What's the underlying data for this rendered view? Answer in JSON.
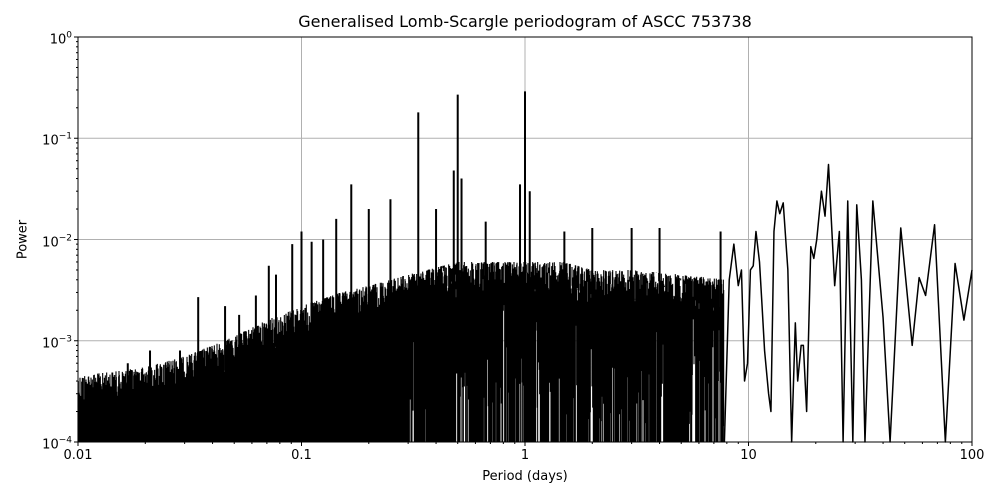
{
  "chart_data": {
    "type": "line",
    "title": "Generalised Lomb-Scargle periodogram of ASCC 753738",
    "xlabel": "Period (days)",
    "ylabel": "Power",
    "xscale": "log",
    "yscale": "log",
    "xlim": [
      0.01,
      100
    ],
    "ylim": [
      0.0001,
      1
    ],
    "grid": true,
    "legend": null,
    "x_ticks": [
      {
        "value": 0.01,
        "label": "0.01"
      },
      {
        "value": 0.1,
        "label": "0.1"
      },
      {
        "value": 1,
        "label": "1"
      },
      {
        "value": 10,
        "label": "10"
      },
      {
        "value": 100,
        "label": "100"
      }
    ],
    "y_ticks": [
      {
        "value": 1,
        "base": "10",
        "exp": "0"
      },
      {
        "value": 0.1,
        "base": "10",
        "exp": "−1"
      },
      {
        "value": 0.01,
        "base": "10",
        "exp": "−2"
      },
      {
        "value": 0.001,
        "base": "10",
        "exp": "−3"
      },
      {
        "value": 0.0001,
        "base": "10",
        "exp": "−4"
      }
    ],
    "line_color": "#000000",
    "grid_color": "#b0b0b0",
    "envelope": {
      "description": "Upper envelope of the dense noise floor (period, power)",
      "points": [
        [
          0.01,
          0.00045
        ],
        [
          0.015,
          0.0005
        ],
        [
          0.02,
          0.00055
        ],
        [
          0.03,
          0.0007
        ],
        [
          0.04,
          0.0009
        ],
        [
          0.05,
          0.0011
        ],
        [
          0.07,
          0.0016
        ],
        [
          0.1,
          0.0022
        ],
        [
          0.15,
          0.003
        ],
        [
          0.2,
          0.0035
        ],
        [
          0.3,
          0.0045
        ],
        [
          0.5,
          0.006
        ],
        [
          0.8,
          0.006
        ],
        [
          1.0,
          0.006
        ],
        [
          1.5,
          0.006
        ],
        [
          2.0,
          0.005
        ],
        [
          3.0,
          0.005
        ],
        [
          5.0,
          0.0045
        ],
        [
          8.0,
          0.004
        ]
      ]
    },
    "peaks": [
      {
        "period": 0.0167,
        "power": 0.0006
      },
      {
        "period": 0.021,
        "power": 0.0008
      },
      {
        "period": 0.0286,
        "power": 0.0008
      },
      {
        "period": 0.0345,
        "power": 0.0027
      },
      {
        "period": 0.0455,
        "power": 0.0022
      },
      {
        "period": 0.0526,
        "power": 0.0018
      },
      {
        "period": 0.0625,
        "power": 0.0028
      },
      {
        "period": 0.0714,
        "power": 0.0055
      },
      {
        "period": 0.0769,
        "power": 0.0045
      },
      {
        "period": 0.0909,
        "power": 0.009
      },
      {
        "period": 0.1,
        "power": 0.012
      },
      {
        "period": 0.111,
        "power": 0.0095
      },
      {
        "period": 0.125,
        "power": 0.01
      },
      {
        "period": 0.143,
        "power": 0.016
      },
      {
        "period": 0.167,
        "power": 0.035
      },
      {
        "period": 0.2,
        "power": 0.02
      },
      {
        "period": 0.25,
        "power": 0.025
      },
      {
        "period": 0.333,
        "power": 0.18
      },
      {
        "period": 0.4,
        "power": 0.02
      },
      {
        "period": 0.5,
        "power": 0.27
      },
      {
        "period": 0.48,
        "power": 0.048
      },
      {
        "period": 0.52,
        "power": 0.04
      },
      {
        "period": 0.667,
        "power": 0.015
      },
      {
        "period": 0.95,
        "power": 0.035
      },
      {
        "period": 1.0,
        "power": 0.29
      },
      {
        "period": 1.05,
        "power": 0.03
      },
      {
        "period": 1.5,
        "power": 0.012
      },
      {
        "period": 2.0,
        "power": 0.013
      },
      {
        "period": 3.0,
        "power": 0.013
      },
      {
        "period": 4.0,
        "power": 0.013
      },
      {
        "period": 7.5,
        "power": 0.012
      }
    ],
    "long_period_curve": [
      [
        7.8,
        0.0001
      ],
      [
        8.2,
        0.004
      ],
      [
        8.6,
        0.009
      ],
      [
        9.0,
        0.0035
      ],
      [
        9.3,
        0.005
      ],
      [
        9.6,
        0.0004
      ],
      [
        9.9,
        0.0006
      ],
      [
        10.2,
        0.005
      ],
      [
        10.5,
        0.0055
      ],
      [
        10.8,
        0.012
      ],
      [
        11.2,
        0.006
      ],
      [
        11.5,
        0.0022
      ],
      [
        11.8,
        0.0008
      ],
      [
        12.3,
        0.0003
      ],
      [
        12.6,
        0.0002
      ],
      [
        13.0,
        0.012
      ],
      [
        13.4,
        0.024
      ],
      [
        13.8,
        0.018
      ],
      [
        14.3,
        0.023
      ],
      [
        15.0,
        0.005
      ],
      [
        15.6,
        0.0001
      ],
      [
        16.2,
        0.0015
      ],
      [
        16.6,
        0.0004
      ],
      [
        17.2,
        0.0009
      ],
      [
        17.6,
        0.0009
      ],
      [
        18.2,
        0.0002
      ],
      [
        19.0,
        0.0085
      ],
      [
        19.6,
        0.0065
      ],
      [
        20.2,
        0.01
      ],
      [
        21.2,
        0.03
      ],
      [
        22.0,
        0.017
      ],
      [
        22.8,
        0.055
      ],
      [
        24.3,
        0.0035
      ],
      [
        25.5,
        0.012
      ],
      [
        26.5,
        0.0001
      ],
      [
        27.8,
        0.024
      ],
      [
        29.3,
        0.0001
      ],
      [
        30.5,
        0.022
      ],
      [
        32.0,
        0.004
      ],
      [
        33.2,
        0.0001
      ],
      [
        36.0,
        0.024
      ],
      [
        40.0,
        0.0017
      ],
      [
        43.0,
        0.0001
      ],
      [
        48.0,
        0.013
      ],
      [
        54.0,
        0.0009
      ],
      [
        58.0,
        0.0042
      ],
      [
        62.0,
        0.0028
      ],
      [
        68.0,
        0.014
      ],
      [
        76.0,
        0.0001
      ],
      [
        84.0,
        0.0058
      ],
      [
        92.0,
        0.0016
      ],
      [
        100.0,
        0.005
      ]
    ]
  }
}
